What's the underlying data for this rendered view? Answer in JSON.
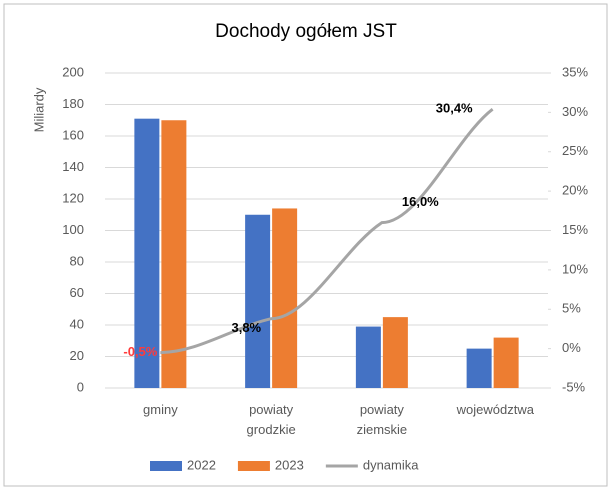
{
  "chart_data": {
    "type": "bar",
    "title": "Dochody ogółem JST",
    "y_label": "Miliardy",
    "categories": [
      "gminy",
      "powiaty grodzkie",
      "powiaty ziemskie",
      "województwa"
    ],
    "series": [
      {
        "name": "2022",
        "color": "#4472c4",
        "values": [
          171,
          110,
          39,
          25
        ]
      },
      {
        "name": "2023",
        "color": "#ed7d31",
        "values": [
          170,
          114,
          45,
          32
        ]
      },
      {
        "name": "dynamika",
        "type": "line",
        "axis": "y2",
        "color": "#a5a5a5",
        "values": [
          -0.5,
          3.8,
          16.0,
          30.4
        ],
        "value_labels": [
          "-0,5%",
          "3,8%",
          "16,0%",
          "30,4%"
        ],
        "value_label_colors": [
          "#ff3b3b",
          "#000000",
          "#000000",
          "#000000"
        ]
      }
    ],
    "ylim": [
      0,
      200
    ],
    "yticks": [
      0,
      20,
      40,
      60,
      80,
      100,
      120,
      140,
      160,
      180,
      200
    ],
    "y2lim": [
      -5,
      35
    ],
    "y2ticks": [
      {
        "value": -5,
        "label": "-5%"
      },
      {
        "value": 0,
        "label": "0%"
      },
      {
        "value": 5,
        "label": "5%"
      },
      {
        "value": 10,
        "label": "10%"
      },
      {
        "value": 15,
        "label": "15%"
      },
      {
        "value": 20,
        "label": "20%"
      },
      {
        "value": 25,
        "label": "25%"
      },
      {
        "value": 30,
        "label": "30%"
      },
      {
        "value": 35,
        "label": "35%"
      }
    ],
    "grid": true,
    "legend": "bottom"
  }
}
